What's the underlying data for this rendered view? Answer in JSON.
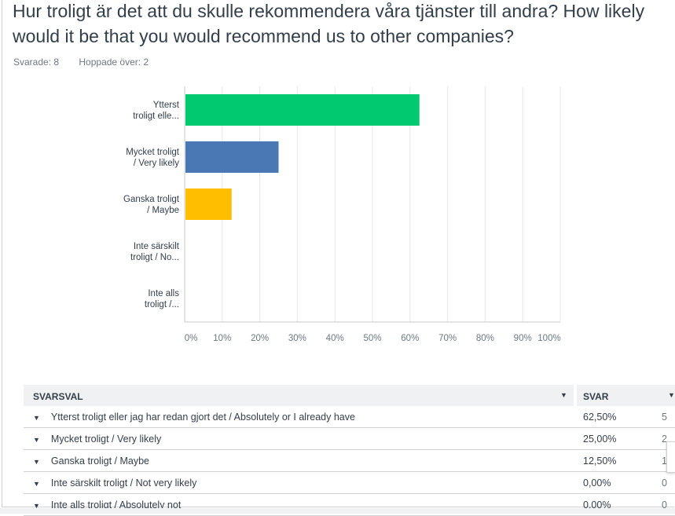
{
  "question": "Hur troligt är det att du skulle rekommendera våra tjänster till andra? How likely would it be that you would recommend us to other companies?",
  "stats": {
    "answered": "Svarade: 8",
    "skipped": "Hoppade över: 2"
  },
  "chart_data": {
    "type": "bar",
    "orientation": "horizontal",
    "categories": [
      "Ytterst troligt elle...",
      "Mycket troligt / Very likely",
      "Ganska troligt / Maybe",
      "Inte särskilt troligt / No...",
      "Inte alls troligt /..."
    ],
    "category_lines": [
      [
        "Ytterst",
        "troligt elle..."
      ],
      [
        "Mycket troligt",
        "/ Very likely"
      ],
      [
        "Ganska troligt",
        "/ Maybe"
      ],
      [
        "Inte särskilt",
        "troligt / No..."
      ],
      [
        "Inte alls",
        "troligt /..."
      ]
    ],
    "values": [
      62.5,
      25,
      12.5,
      0,
      0
    ],
    "colors": [
      "#00c96f",
      "#4a78b5",
      "#ffbe00",
      "#f05b24",
      "#a5a5a5"
    ],
    "xlim": [
      0,
      100
    ],
    "xticks": [
      "0%",
      "10%",
      "20%",
      "30%",
      "40%",
      "50%",
      "60%",
      "70%",
      "80%",
      "90%",
      "100%"
    ],
    "grid": true
  },
  "table": {
    "headers": [
      "SVARSVAL",
      "SVAR"
    ],
    "rows": [
      {
        "label": "Ytterst troligt eller jag har redan gjort det  / Absolutely or I already have",
        "pct": "62,50%",
        "count": "5"
      },
      {
        "label": "Mycket troligt / Very likely",
        "pct": "25,00%",
        "count": "2"
      },
      {
        "label": "Ganska troligt / Maybe",
        "pct": "12,50%",
        "count": "1"
      },
      {
        "label": "Inte särskilt troligt / Not very likely",
        "pct": "0,00%",
        "count": "0"
      },
      {
        "label": "Inte alls troligt / Absolutely not",
        "pct": "0,00%",
        "count": "0"
      }
    ]
  }
}
